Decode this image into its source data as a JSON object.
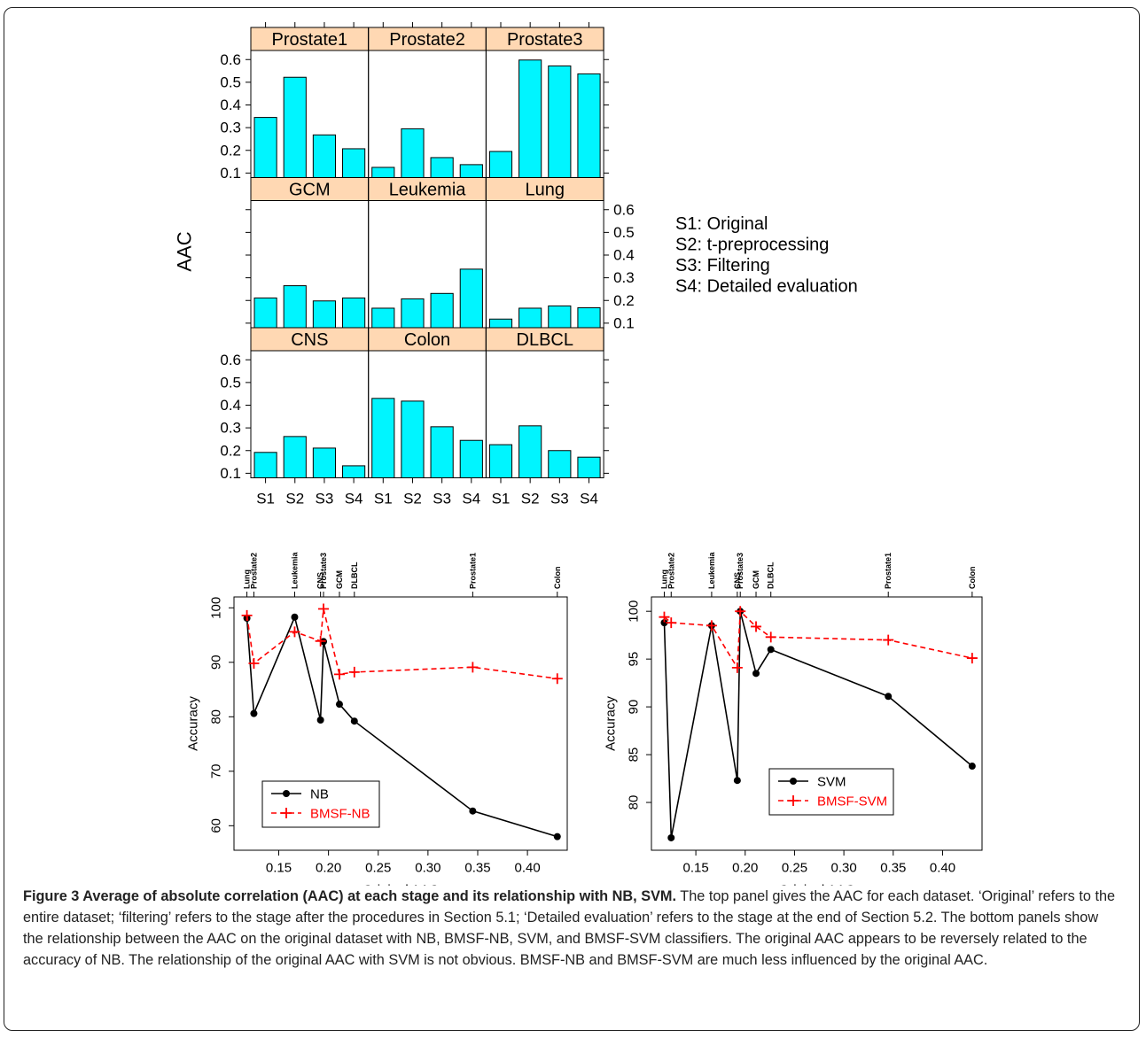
{
  "chart_data": [
    {
      "type": "bar",
      "ylabel": "AAC",
      "categories": [
        "S1",
        "S2",
        "S3",
        "S4"
      ],
      "yticks": [
        "0.1",
        "0.2",
        "0.3",
        "0.4",
        "0.5",
        "0.6"
      ],
      "ylim": [
        0.08,
        0.64
      ],
      "bar_color": "#00f5ff",
      "strip_color": "#ffd8b3",
      "legend": [
        "S1: Original",
        "S2: t-preprocessing",
        "S3: Filtering",
        "S4: Detailed evaluation"
      ],
      "panels": [
        {
          "name": "Prostate1",
          "values": [
            0.345,
            0.522,
            0.268,
            0.207
          ]
        },
        {
          "name": "Prostate2",
          "values": [
            0.125,
            0.295,
            0.168,
            0.137
          ]
        },
        {
          "name": "Prostate3",
          "values": [
            0.195,
            0.598,
            0.572,
            0.537
          ]
        },
        {
          "name": "GCM",
          "values": [
            0.211,
            0.265,
            0.198,
            0.211
          ]
        },
        {
          "name": "Leukemia",
          "values": [
            0.166,
            0.207,
            0.231,
            0.338
          ]
        },
        {
          "name": "Lung",
          "values": [
            0.118,
            0.166,
            0.176,
            0.168
          ]
        },
        {
          "name": "CNS",
          "values": [
            0.192,
            0.262,
            0.211,
            0.133
          ]
        },
        {
          "name": "Colon",
          "values": [
            0.43,
            0.418,
            0.305,
            0.245
          ]
        },
        {
          "name": "DLBCL",
          "values": [
            0.226,
            0.309,
            0.2,
            0.171
          ]
        }
      ]
    },
    {
      "type": "line",
      "xlabel": "Original AAC",
      "ylabel": "Accuracy",
      "xlim": [
        0.105,
        0.44
      ],
      "ylim": [
        55.5,
        102
      ],
      "xticks": [
        "0.15",
        "0.20",
        "0.25",
        "0.30",
        "0.35",
        "0.40"
      ],
      "yticks": [
        "60",
        "70",
        "80",
        "90",
        "100"
      ],
      "top_labels": [
        "Lung",
        "Prostate2",
        "Leukemia",
        "CNS",
        "Prostate3",
        "GCM",
        "DLBCL",
        "Prostate1",
        "Colon"
      ],
      "x": [
        0.118,
        0.125,
        0.166,
        0.192,
        0.195,
        0.211,
        0.226,
        0.345,
        0.43
      ],
      "series": [
        {
          "name": "NB",
          "color": "#000000",
          "values": [
            98.1,
            80.6,
            98.3,
            79.4,
            93.8,
            82.3,
            79.2,
            62.7,
            58.0
          ]
        },
        {
          "name": "BMSF-NB",
          "color": "#ff0000",
          "values": [
            98.6,
            89.8,
            95.6,
            93.9,
            99.8,
            87.8,
            88.2,
            89.1,
            87.0
          ]
        }
      ]
    },
    {
      "type": "line",
      "xlabel": "Original AAC",
      "ylabel": "Accuracy",
      "xlim": [
        0.105,
        0.44
      ],
      "ylim": [
        75,
        101.5
      ],
      "xticks": [
        "0.15",
        "0.20",
        "0.25",
        "0.30",
        "0.35",
        "0.40"
      ],
      "yticks": [
        "80",
        "85",
        "90",
        "95",
        "100"
      ],
      "top_labels": [
        "Lung",
        "Prostate2",
        "Leukemia",
        "CNS",
        "Prostate3",
        "GCM",
        "DLBCL",
        "Prostate1",
        "Colon"
      ],
      "x": [
        0.118,
        0.125,
        0.166,
        0.192,
        0.195,
        0.211,
        0.226,
        0.345,
        0.43
      ],
      "series": [
        {
          "name": "SVM",
          "color": "#000000",
          "values": [
            98.8,
            76.3,
            98.5,
            82.3,
            100.0,
            93.5,
            96.0,
            91.1,
            83.8
          ]
        },
        {
          "name": "BMSF-SVM",
          "color": "#ff0000",
          "values": [
            99.4,
            98.8,
            98.5,
            94.1,
            100.0,
            98.4,
            97.3,
            97.0,
            95.1
          ]
        }
      ]
    }
  ],
  "caption": {
    "title": "Figure 3 Average of absolute correlation (AAC) at each stage and its relationship with NB, SVM.",
    "body": "The top panel gives the AAC for each dataset. ‘Original’ refers to the entire dataset; ‘filtering’ refers to the stage after the procedures in Section 5.1; ‘Detailed evaluation’ refers to the stage at the end of Section 5.2. The bottom panels show the relationship between the AAC on the original dataset with NB, BMSF-NB, SVM, and BMSF-SVM classifiers. The original AAC appears to be reversely related to the accuracy of NB. The relationship of the original AAC with SVM is not obvious. BMSF-NB and BMSF-SVM are much less influenced by the original AAC."
  }
}
